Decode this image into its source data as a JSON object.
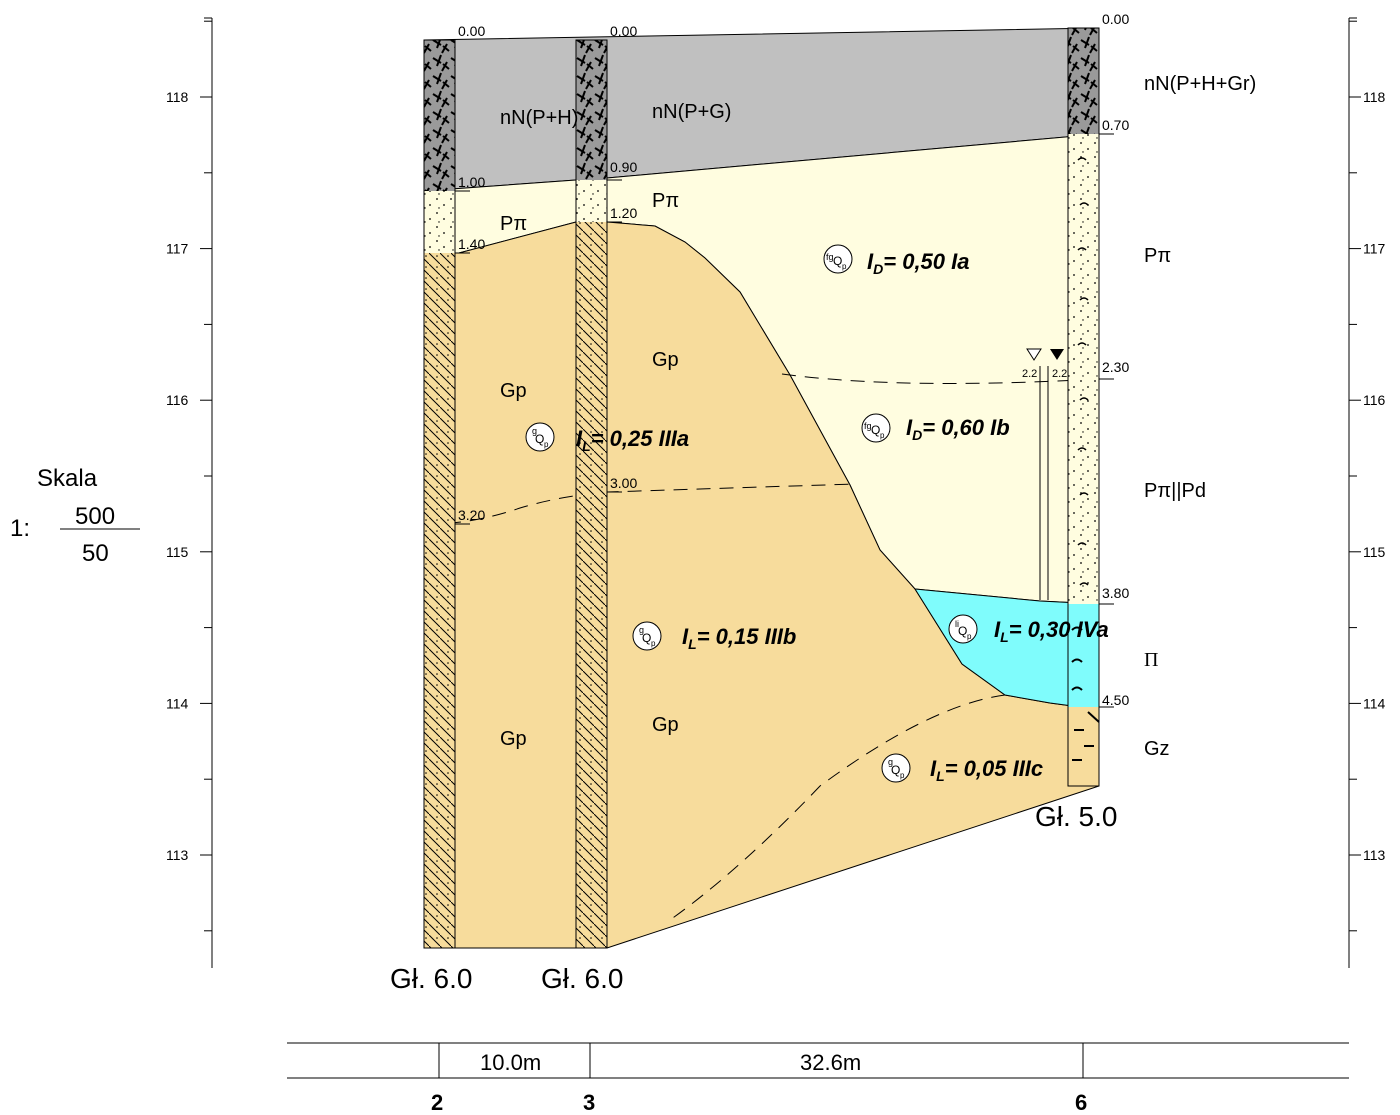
{
  "scale": {
    "label": "Skala",
    "prefix": "1:",
    "numerator": "500",
    "denominator": "50"
  },
  "elevation_ticks": [
    "118",
    "117",
    "116",
    "115",
    "114",
    "113"
  ],
  "boreholes": [
    {
      "depth_labels": [
        "0.00",
        "1.00",
        "1.40",
        "3.20"
      ],
      "final_depth": "Gł. 6.0",
      "station": "2"
    },
    {
      "depth_labels": [
        "0.00",
        "0.90",
        "1.20",
        "3.00"
      ],
      "final_depth": "Gł. 6.0",
      "station": "3"
    },
    {
      "depth_labels": [
        "0.00",
        "0.70",
        "2.30",
        "3.80",
        "4.50"
      ],
      "final_depth": "Gł. 5.0",
      "station": "6",
      "water_levels": [
        "2.2",
        "2.2"
      ],
      "soil_labels": [
        "nN(P+H+Gr)",
        "Pπ",
        "Pπ||Pd",
        "Π",
        "Gz"
      ]
    }
  ],
  "section_labels": {
    "fill_bh2": "nN(P+H)",
    "fill_bh3": "nN(P+G)",
    "sand_bh2": "Pπ",
    "sand_bh3": "Pπ",
    "gp_upper_bh2": "Gp",
    "gp_upper_bh3": "Gp",
    "gp_lower_bh2": "Gp",
    "gp_lower_bh3": "Gp"
  },
  "layers": [
    {
      "symbol": "fgQp",
      "sub_main": "fg",
      "sub_bottom": "p",
      "parameter": "I",
      "subscript": "D",
      "value": "= 0,50 Ia"
    },
    {
      "symbol": "fgQp",
      "sub_main": "fg",
      "sub_bottom": "p",
      "parameter": "I",
      "subscript": "D",
      "value": "= 0,60 Ib"
    },
    {
      "symbol": "gQp",
      "sub_main": "g",
      "sub_bottom": "p",
      "parameter": "I",
      "subscript": "L",
      "value": "= 0,25 IIIa"
    },
    {
      "symbol": "gQp",
      "sub_main": "g",
      "sub_bottom": "p",
      "parameter": "I",
      "subscript": "L",
      "value": "= 0,15 IIIb"
    },
    {
      "symbol": "liQp",
      "sub_main": "li",
      "sub_bottom": "p",
      "parameter": "I",
      "subscript": "L",
      "value": "= 0,30 IVa"
    },
    {
      "symbol": "gQp",
      "sub_main": "g",
      "sub_bottom": "p",
      "parameter": "I",
      "subscript": "L",
      "value": "= 0,05 IIIc"
    }
  ],
  "distances": [
    "10.0m",
    "32.6m"
  ],
  "colors": {
    "fill": "#c0c0c0",
    "sand": "#fffde0",
    "clay": "#f7dc9c",
    "organic": "#7ffcfc"
  }
}
